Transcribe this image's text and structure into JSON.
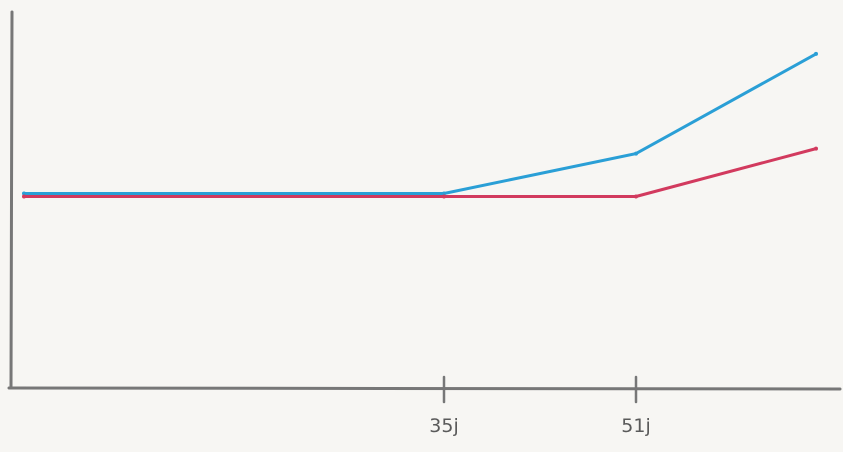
{
  "chart_data": {
    "type": "line",
    "title": "",
    "xlabel": "",
    "ylabel": "",
    "x_tick_labels": [
      "35j",
      "51j"
    ],
    "grid": false,
    "legend": "none",
    "series": [
      {
        "color": "#2a9fd6",
        "points": [
          [
            0,
            1.0
          ],
          [
            35,
            1.0
          ],
          [
            51,
            1.4
          ],
          [
            66,
            2.4
          ]
        ]
      },
      {
        "color": "#d23a5e",
        "points": [
          [
            0,
            0.97
          ],
          [
            35,
            0.97
          ],
          [
            51,
            0.97
          ],
          [
            66,
            1.45
          ]
        ]
      }
    ],
    "xlim": [
      -1,
      68
    ],
    "ylim": [
      -0.95,
      2.82
    ],
    "axis_color": "#777777"
  }
}
